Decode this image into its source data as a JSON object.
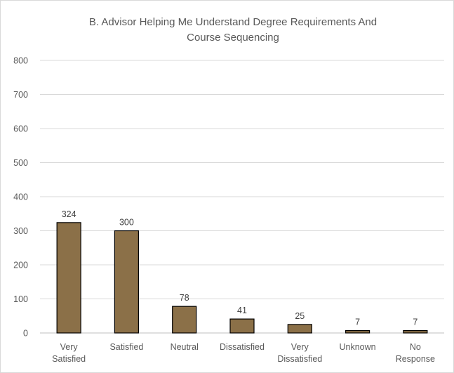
{
  "chart_data": {
    "type": "bar",
    "title": [
      "B. Advisor Helping Me Understand Degree Requirements And",
      "Course Sequencing"
    ],
    "xlabel": "",
    "ylabel": "",
    "ylim": [
      0,
      800
    ],
    "yticks": [
      0,
      100,
      200,
      300,
      400,
      500,
      600,
      700,
      800
    ],
    "categories": [
      [
        "Very",
        "Satisfied"
      ],
      [
        "Satisfied"
      ],
      [
        "Neutral"
      ],
      [
        "Dissatisfied"
      ],
      [
        "Very",
        "Dissatisfied"
      ],
      [
        "Unknown"
      ],
      [
        "No",
        "Response"
      ]
    ],
    "values": [
      324,
      300,
      78,
      41,
      25,
      7,
      7
    ],
    "data_labels": [
      "324",
      "300",
      "78",
      "41",
      "25",
      "7",
      "7"
    ],
    "grid": true,
    "legend": "none",
    "colors": {
      "bar_fill": "#8B7048",
      "bar_stroke": "#000000",
      "grid": "#d9d9d9",
      "axis": "#bfbfbf",
      "text": "#595959"
    }
  }
}
